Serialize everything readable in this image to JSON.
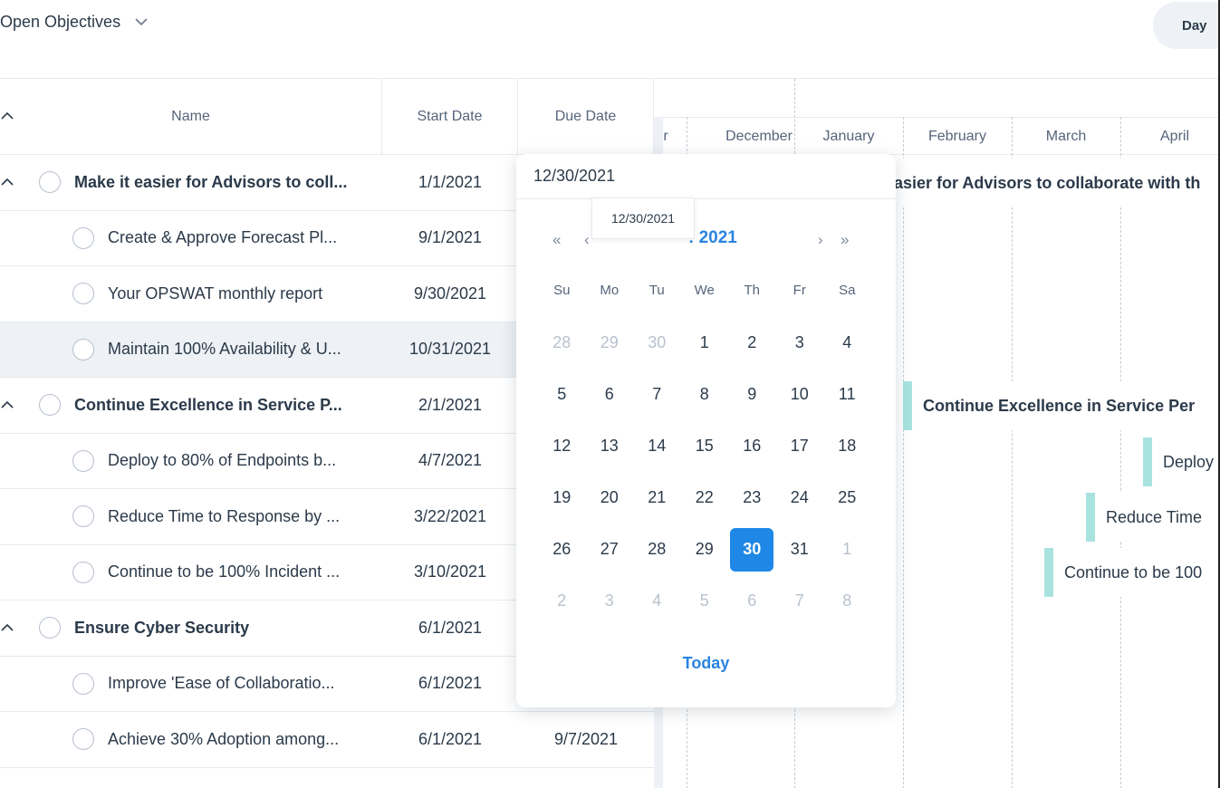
{
  "header": {
    "filter_label": "Open Objectives",
    "view_toggle_label": "Day"
  },
  "table": {
    "columns": {
      "name": "Name",
      "start": "Start Date",
      "due": "Due Date"
    },
    "rows": [
      {
        "type": "parent",
        "name": "Make it easier for Advisors to coll...",
        "start": "1/1/2021",
        "due": ""
      },
      {
        "type": "child",
        "name": "Create & Approve Forecast Pl...",
        "start": "9/1/2021",
        "due": ""
      },
      {
        "type": "child",
        "name": "Your OPSWAT monthly report",
        "start": "9/30/2021",
        "due": ""
      },
      {
        "type": "child",
        "name": "Maintain 100% Availability & U...",
        "start": "10/31/2021",
        "due": "",
        "selected": true
      },
      {
        "type": "parent",
        "name": "Continue Excellence in Service P...",
        "start": "2/1/2021",
        "due": ""
      },
      {
        "type": "child",
        "name": "Deploy to 80% of Endpoints b...",
        "start": "4/7/2021",
        "due": ""
      },
      {
        "type": "child",
        "name": "Reduce Time to Response by ...",
        "start": "3/22/2021",
        "due": ""
      },
      {
        "type": "child",
        "name": "Continue to be 100% Incident ...",
        "start": "3/10/2021",
        "due": ""
      },
      {
        "type": "parent",
        "name": "Ensure Cyber Security",
        "start": "6/1/2021",
        "due": ""
      },
      {
        "type": "child",
        "name": "Improve 'Ease of Collaboratio...",
        "start": "6/1/2021",
        "due": ""
      },
      {
        "type": "child",
        "name": "Achieve 30% Adoption among...",
        "start": "6/1/2021",
        "due": "9/7/2021"
      }
    ]
  },
  "timeline": {
    "months": [
      "r",
      "December",
      "January",
      "February",
      "March",
      "April"
    ],
    "bars": [
      {
        "text": "asier for Advisors to collaborate with th",
        "bold": true
      },
      {
        "text": "Continue Excellence in Service Per",
        "bold": true
      },
      {
        "text": "Deploy",
        "bold": false
      },
      {
        "text": "Reduce Time",
        "bold": false
      },
      {
        "text": "Continue to be 100",
        "bold": false
      }
    ]
  },
  "datepicker": {
    "input_value": "12/30/2021",
    "tooltip": "12/30/2021",
    "nav": {
      "prev_year": "«",
      "prev_month": "‹",
      "title": ": 2021",
      "next_month": "›",
      "next_year": "»"
    },
    "weekdays": [
      "Su",
      "Mo",
      "Tu",
      "We",
      "Th",
      "Fr",
      "Sa"
    ],
    "days": [
      {
        "d": "28",
        "m": true
      },
      {
        "d": "29",
        "m": true
      },
      {
        "d": "30",
        "m": true
      },
      {
        "d": "1"
      },
      {
        "d": "2"
      },
      {
        "d": "3"
      },
      {
        "d": "4"
      },
      {
        "d": "5"
      },
      {
        "d": "6"
      },
      {
        "d": "7"
      },
      {
        "d": "8"
      },
      {
        "d": "9"
      },
      {
        "d": "10"
      },
      {
        "d": "11"
      },
      {
        "d": "12"
      },
      {
        "d": "13"
      },
      {
        "d": "14"
      },
      {
        "d": "15"
      },
      {
        "d": "16"
      },
      {
        "d": "17"
      },
      {
        "d": "18"
      },
      {
        "d": "19"
      },
      {
        "d": "20"
      },
      {
        "d": "21"
      },
      {
        "d": "22"
      },
      {
        "d": "23"
      },
      {
        "d": "24"
      },
      {
        "d": "25"
      },
      {
        "d": "26"
      },
      {
        "d": "27"
      },
      {
        "d": "28"
      },
      {
        "d": "29"
      },
      {
        "d": "30",
        "sel": true
      },
      {
        "d": "31"
      },
      {
        "d": "1",
        "m": true
      },
      {
        "d": "2",
        "m": true
      },
      {
        "d": "3",
        "m": true
      },
      {
        "d": "4",
        "m": true
      },
      {
        "d": "5",
        "m": true
      },
      {
        "d": "6",
        "m": true
      },
      {
        "d": "7",
        "m": true
      },
      {
        "d": "8",
        "m": true
      }
    ],
    "today_label": "Today"
  },
  "colors": {
    "accent": "#1f87e5",
    "bar_accent": "#a8e3e0",
    "selected_row": "#eef1f5"
  }
}
